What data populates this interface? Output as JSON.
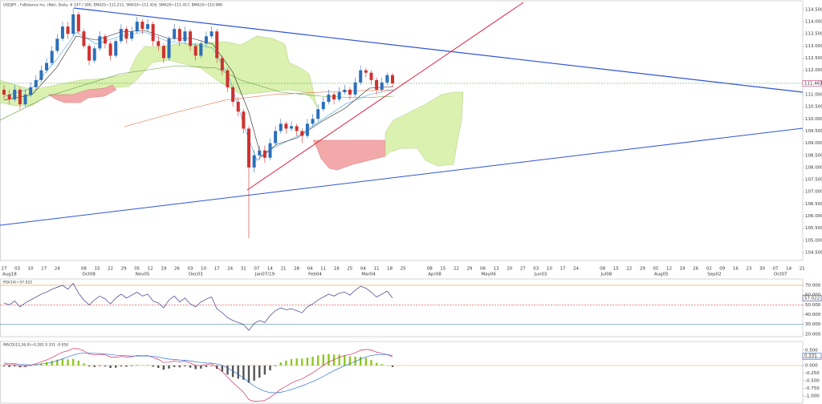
{
  "chart_data": {
    "type": "candlestick",
    "title": "USDJPY - FxBalance Inc. (fbb), Daily, # 147 / 300, EMA25=111.211, SMA10=111.416, SMA20=111.417, BMA10=110.989",
    "up_color": "#2c6fbb",
    "down_color": "#d03030",
    "candles": [
      [
        111.2,
        111.4,
        110.8,
        111.0
      ],
      [
        111.0,
        111.2,
        110.6,
        110.8
      ],
      [
        110.8,
        111.4,
        110.7,
        111.2
      ],
      [
        111.2,
        111.3,
        110.4,
        110.6
      ],
      [
        110.6,
        111.2,
        110.5,
        111.0
      ],
      [
        111.0,
        111.5,
        110.9,
        111.3
      ],
      [
        111.3,
        111.8,
        111.2,
        111.6
      ],
      [
        111.6,
        112.2,
        111.5,
        112.0
      ],
      [
        112.0,
        112.5,
        111.9,
        112.3
      ],
      [
        112.3,
        113.0,
        112.2,
        112.8
      ],
      [
        112.8,
        113.5,
        112.7,
        113.3
      ],
      [
        113.3,
        114.0,
        113.2,
        113.8
      ],
      [
        113.8,
        114.0,
        113.3,
        113.5
      ],
      [
        113.5,
        114.55,
        113.4,
        114.3
      ],
      [
        114.3,
        114.4,
        113.5,
        113.6
      ],
      [
        113.6,
        113.7,
        112.9,
        113.0
      ],
      [
        113.0,
        113.1,
        112.2,
        112.4
      ],
      [
        112.4,
        113.0,
        112.3,
        112.9
      ],
      [
        112.9,
        113.6,
        112.8,
        113.4
      ],
      [
        113.4,
        113.5,
        112.9,
        113.1
      ],
      [
        113.1,
        113.2,
        112.4,
        112.6
      ],
      [
        112.6,
        113.3,
        112.5,
        113.2
      ],
      [
        113.2,
        113.9,
        113.1,
        113.7
      ],
      [
        113.7,
        113.8,
        113.1,
        113.3
      ],
      [
        113.3,
        113.8,
        113.2,
        113.6
      ],
      [
        113.6,
        114.2,
        113.5,
        114.0
      ],
      [
        114.0,
        114.1,
        113.5,
        113.7
      ],
      [
        113.7,
        114.1,
        113.6,
        113.9
      ],
      [
        113.9,
        114.0,
        113.0,
        113.2
      ],
      [
        113.2,
        113.4,
        112.8,
        113.0
      ],
      [
        113.0,
        113.1,
        112.3,
        112.5
      ],
      [
        112.5,
        113.4,
        112.4,
        113.3
      ],
      [
        113.3,
        113.9,
        113.2,
        113.7
      ],
      [
        113.7,
        113.8,
        113.0,
        113.2
      ],
      [
        113.2,
        113.8,
        113.1,
        113.6
      ],
      [
        113.6,
        113.7,
        112.8,
        113.0
      ],
      [
        113.0,
        113.1,
        112.4,
        112.6
      ],
      [
        112.6,
        113.2,
        112.5,
        113.1
      ],
      [
        113.1,
        113.6,
        113.0,
        113.4
      ],
      [
        113.4,
        113.8,
        113.3,
        113.6
      ],
      [
        113.6,
        113.7,
        112.3,
        112.5
      ],
      [
        112.5,
        112.6,
        111.8,
        112.0
      ],
      [
        112.0,
        112.1,
        111.1,
        111.3
      ],
      [
        111.3,
        111.4,
        110.5,
        110.7
      ],
      [
        110.7,
        110.9,
        110.1,
        110.3
      ],
      [
        110.3,
        110.4,
        109.4,
        109.6
      ],
      [
        109.6,
        109.7,
        105.1,
        108.0
      ],
      [
        108.0,
        108.7,
        107.8,
        108.5
      ],
      [
        108.5,
        108.9,
        108.3,
        108.7
      ],
      [
        108.7,
        108.9,
        108.2,
        108.4
      ],
      [
        108.4,
        109.2,
        108.3,
        109.0
      ],
      [
        109.0,
        109.7,
        108.9,
        109.5
      ],
      [
        109.5,
        110.0,
        109.4,
        109.8
      ],
      [
        109.8,
        109.9,
        109.4,
        109.6
      ],
      [
        109.6,
        109.9,
        109.5,
        109.7
      ],
      [
        109.7,
        109.8,
        109.3,
        109.5
      ],
      [
        109.5,
        109.6,
        109.0,
        109.3
      ],
      [
        109.3,
        110.0,
        109.2,
        109.8
      ],
      [
        109.8,
        110.2,
        109.7,
        110.0
      ],
      [
        110.0,
        110.6,
        109.9,
        110.4
      ],
      [
        110.4,
        110.9,
        110.3,
        110.7
      ],
      [
        110.7,
        111.2,
        110.6,
        111.0
      ],
      [
        111.0,
        111.1,
        110.6,
        110.8
      ],
      [
        110.8,
        111.3,
        110.7,
        111.1
      ],
      [
        111.1,
        111.4,
        111.0,
        111.2
      ],
      [
        111.2,
        111.3,
        110.8,
        111.0
      ],
      [
        111.0,
        111.7,
        110.9,
        111.5
      ],
      [
        111.5,
        112.2,
        111.4,
        112.0
      ],
      [
        112.0,
        112.1,
        111.7,
        111.9
      ],
      [
        111.9,
        112.0,
        111.4,
        111.6
      ],
      [
        111.6,
        111.7,
        111.0,
        111.2
      ],
      [
        111.2,
        111.7,
        111.1,
        111.5
      ],
      [
        111.5,
        111.9,
        111.4,
        111.8
      ],
      [
        111.8,
        111.9,
        111.3,
        111.463
      ]
    ],
    "ylim": [
      104.17,
      114.86
    ],
    "yticks": [
      {
        "value": 114.5,
        "label": "114.500"
      },
      {
        "value": 114,
        "label": "114.000"
      },
      {
        "value": 113.5,
        "label": "113.500"
      },
      {
        "value": 113,
        "label": "113.000"
      },
      {
        "value": 112.5,
        "label": "112.500"
      },
      {
        "value": 112,
        "label": "112.000"
      },
      {
        "value": 111.5,
        "label": "111.500"
      },
      {
        "value": 111,
        "label": "111.000"
      },
      {
        "value": 110.5,
        "label": "110.500"
      },
      {
        "value": 110,
        "label": "110.000"
      },
      {
        "value": 109.5,
        "label": "109.500"
      },
      {
        "value": 109,
        "label": "109.000"
      },
      {
        "value": 108.5,
        "label": "108.500"
      },
      {
        "value": 108,
        "label": "108.000"
      },
      {
        "value": 107.5,
        "label": "107.500"
      },
      {
        "value": 107,
        "label": "107.000"
      },
      {
        "value": 106.5,
        "label": "106.500"
      },
      {
        "value": 106,
        "label": "106.000"
      },
      {
        "value": 105.5,
        "label": "105.500"
      },
      {
        "value": 105,
        "label": "105.000"
      },
      {
        "value": 104.5,
        "label": "104.500"
      }
    ],
    "xlabels": [
      "27",
      "03",
      "10",
      "17",
      "24",
      null,
      "08",
      "15",
      "22",
      "29",
      "05",
      "12",
      "19",
      "26",
      "03",
      "10",
      "17",
      "24",
      "31",
      "07",
      "14",
      "21",
      "28",
      "04",
      "11",
      "18",
      "25",
      "04",
      "11",
      "18",
      "25",
      null,
      "08",
      "15",
      "22",
      "29",
      "06",
      "13",
      "20",
      "27",
      "03",
      "10",
      "17",
      "24",
      null,
      "08",
      "15",
      "22",
      "29",
      "05",
      "12",
      "19",
      "26",
      "02",
      "09",
      "16",
      "23",
      "30",
      "07",
      "14",
      "21"
    ],
    "xlabels2": [
      "Aug18",
      null,
      null,
      null,
      null,
      null,
      "Oct08",
      null,
      null,
      null,
      "Nov05",
      null,
      null,
      null,
      "Dec03",
      null,
      null,
      null,
      null,
      "Jan07/19",
      null,
      null,
      null,
      "Feb04",
      null,
      null,
      null,
      "Mar04",
      null,
      null,
      null,
      null,
      "Apr08",
      null,
      null,
      null,
      "May06",
      null,
      null,
      null,
      "Jun03",
      null,
      null,
      null,
      null,
      "Jul08",
      null,
      null,
      null,
      "Aug05",
      null,
      null,
      null,
      "Sep02",
      null,
      null,
      null,
      null,
      "Oct07",
      null,
      null
    ],
    "rsi": {
      "title": "RSI(14)=57.022",
      "color": "#3a3a8c",
      "values": [
        52,
        50,
        54,
        48,
        52,
        55,
        58,
        61,
        63,
        66,
        68,
        70,
        66,
        72,
        62,
        55,
        50,
        55,
        59,
        56,
        51,
        57,
        61,
        57,
        60,
        63,
        59,
        61,
        54,
        52,
        47,
        55,
        59,
        53,
        57,
        51,
        48,
        53,
        56,
        58,
        46,
        42,
        37,
        34,
        32,
        30,
        24,
        31,
        34,
        32,
        39,
        44,
        47,
        45,
        46,
        44,
        42,
        48,
        51,
        55,
        58,
        61,
        59,
        62,
        63,
        60,
        65,
        69,
        67,
        63,
        58,
        61,
        64,
        57.022
      ],
      "ylim": [
        17.5,
        76.5
      ],
      "yticks": [
        {
          "value": 70,
          "label": "70.000"
        },
        {
          "value": 60,
          "label": "60.000"
        },
        {
          "value": 50,
          "label": "50.000"
        },
        {
          "value": 40,
          "label": "40.000"
        },
        {
          "value": 30,
          "label": "30.000"
        },
        {
          "value": 20,
          "label": "20.000"
        }
      ],
      "levels": [
        70,
        50,
        30
      ],
      "level_colors": [
        "#e0a040",
        "#e04040",
        "#208080"
      ]
    },
    "macd": {
      "title": "MACD(12,26,9)=0.281 0.331 -0.050",
      "macd_color": "#d0306a",
      "signal_color": "#3070d0",
      "pos_color": "#8cc820",
      "neg_color": "#555555",
      "macd": [
        0.05,
        0.02,
        0.03,
        -0.02,
        -0.02,
        0.01,
        0.06,
        0.12,
        0.18,
        0.26,
        0.35,
        0.44,
        0.48,
        0.56,
        0.55,
        0.48,
        0.38,
        0.35,
        0.37,
        0.35,
        0.28,
        0.27,
        0.3,
        0.28,
        0.29,
        0.33,
        0.32,
        0.33,
        0.26,
        0.2,
        0.1,
        0.11,
        0.15,
        0.12,
        0.14,
        0.08,
        0.0,
        0.0,
        0.03,
        0.06,
        -0.06,
        -0.2,
        -0.38,
        -0.56,
        -0.72,
        -0.88,
        -1.12,
        -1.18,
        -1.17,
        -1.15,
        -1.05,
        -0.92,
        -0.78,
        -0.68,
        -0.58,
        -0.5,
        -0.44,
        -0.34,
        -0.24,
        -0.12,
        0.0,
        0.12,
        0.19,
        0.27,
        0.33,
        0.36,
        0.42,
        0.5,
        0.53,
        0.51,
        0.44,
        0.4,
        0.36,
        0.281
      ],
      "signal": [
        0.08,
        0.07,
        0.06,
        0.04,
        0.03,
        0.02,
        0.03,
        0.05,
        0.07,
        0.11,
        0.16,
        0.22,
        0.28,
        0.34,
        0.39,
        0.41,
        0.41,
        0.4,
        0.39,
        0.38,
        0.36,
        0.34,
        0.33,
        0.32,
        0.31,
        0.31,
        0.31,
        0.31,
        0.3,
        0.28,
        0.24,
        0.21,
        0.2,
        0.18,
        0.17,
        0.15,
        0.12,
        0.1,
        0.08,
        0.08,
        0.05,
        0.0,
        -0.08,
        -0.18,
        -0.29,
        -0.41,
        -0.55,
        -0.68,
        -0.77,
        -0.85,
        -0.89,
        -0.9,
        -0.88,
        -0.84,
        -0.79,
        -0.73,
        -0.67,
        -0.6,
        -0.53,
        -0.45,
        -0.36,
        -0.26,
        -0.17,
        -0.09,
        -0.01,
        0.06,
        0.13,
        0.21,
        0.28,
        0.33,
        0.35,
        0.36,
        0.36,
        0.331
      ],
      "histogram": [
        -0.03,
        -0.05,
        -0.03,
        -0.06,
        -0.05,
        -0.01,
        0.03,
        0.07,
        0.11,
        0.15,
        0.19,
        0.22,
        0.2,
        0.22,
        0.16,
        0.07,
        -0.03,
        -0.05,
        -0.02,
        -0.03,
        -0.08,
        -0.07,
        -0.03,
        -0.04,
        -0.02,
        0.02,
        0.01,
        0.02,
        -0.04,
        -0.08,
        -0.14,
        -0.1,
        -0.05,
        -0.06,
        -0.03,
        -0.07,
        -0.12,
        -0.1,
        -0.05,
        -0.02,
        -0.11,
        -0.2,
        -0.3,
        -0.38,
        -0.43,
        -0.47,
        -0.57,
        -0.5,
        -0.4,
        -0.3,
        -0.16,
        -0.02,
        0.1,
        0.16,
        0.21,
        0.23,
        0.23,
        0.26,
        0.29,
        0.33,
        0.36,
        0.38,
        0.36,
        0.36,
        0.34,
        0.3,
        0.29,
        0.29,
        0.25,
        0.18,
        0.09,
        0.04,
        0,
        -0.05
      ],
      "ylim": [
        -1.24,
        0.79
      ],
      "yticks": [
        {
          "value": 0.5,
          "label": "0.500"
        },
        {
          "value": 0.25,
          "label": "0.250"
        },
        {
          "value": 0,
          "label": "0.000"
        },
        {
          "value": -0.25,
          "label": "-0.250"
        },
        {
          "value": -0.5,
          "label": "-0.500"
        },
        {
          "value": -0.75,
          "label": "-0.750"
        },
        {
          "value": -1,
          "label": "-1.000"
        }
      ]
    }
  }
}
